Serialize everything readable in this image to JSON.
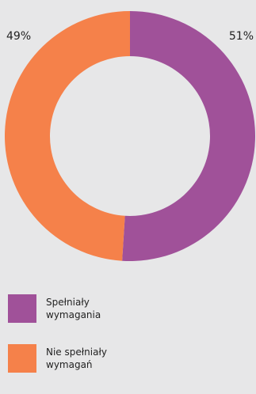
{
  "chart_data": {
    "type": "pie",
    "style": "donut",
    "categories": [
      "Spełniały wymagania",
      "Nie spełniały wymagań"
    ],
    "values": [
      51,
      49
    ],
    "value_labels": [
      "51%",
      "49%"
    ],
    "colors": [
      "#a05199",
      "#f5814a"
    ],
    "title": "",
    "legend_position": "bottom-left"
  },
  "background": "#e7e7e8"
}
